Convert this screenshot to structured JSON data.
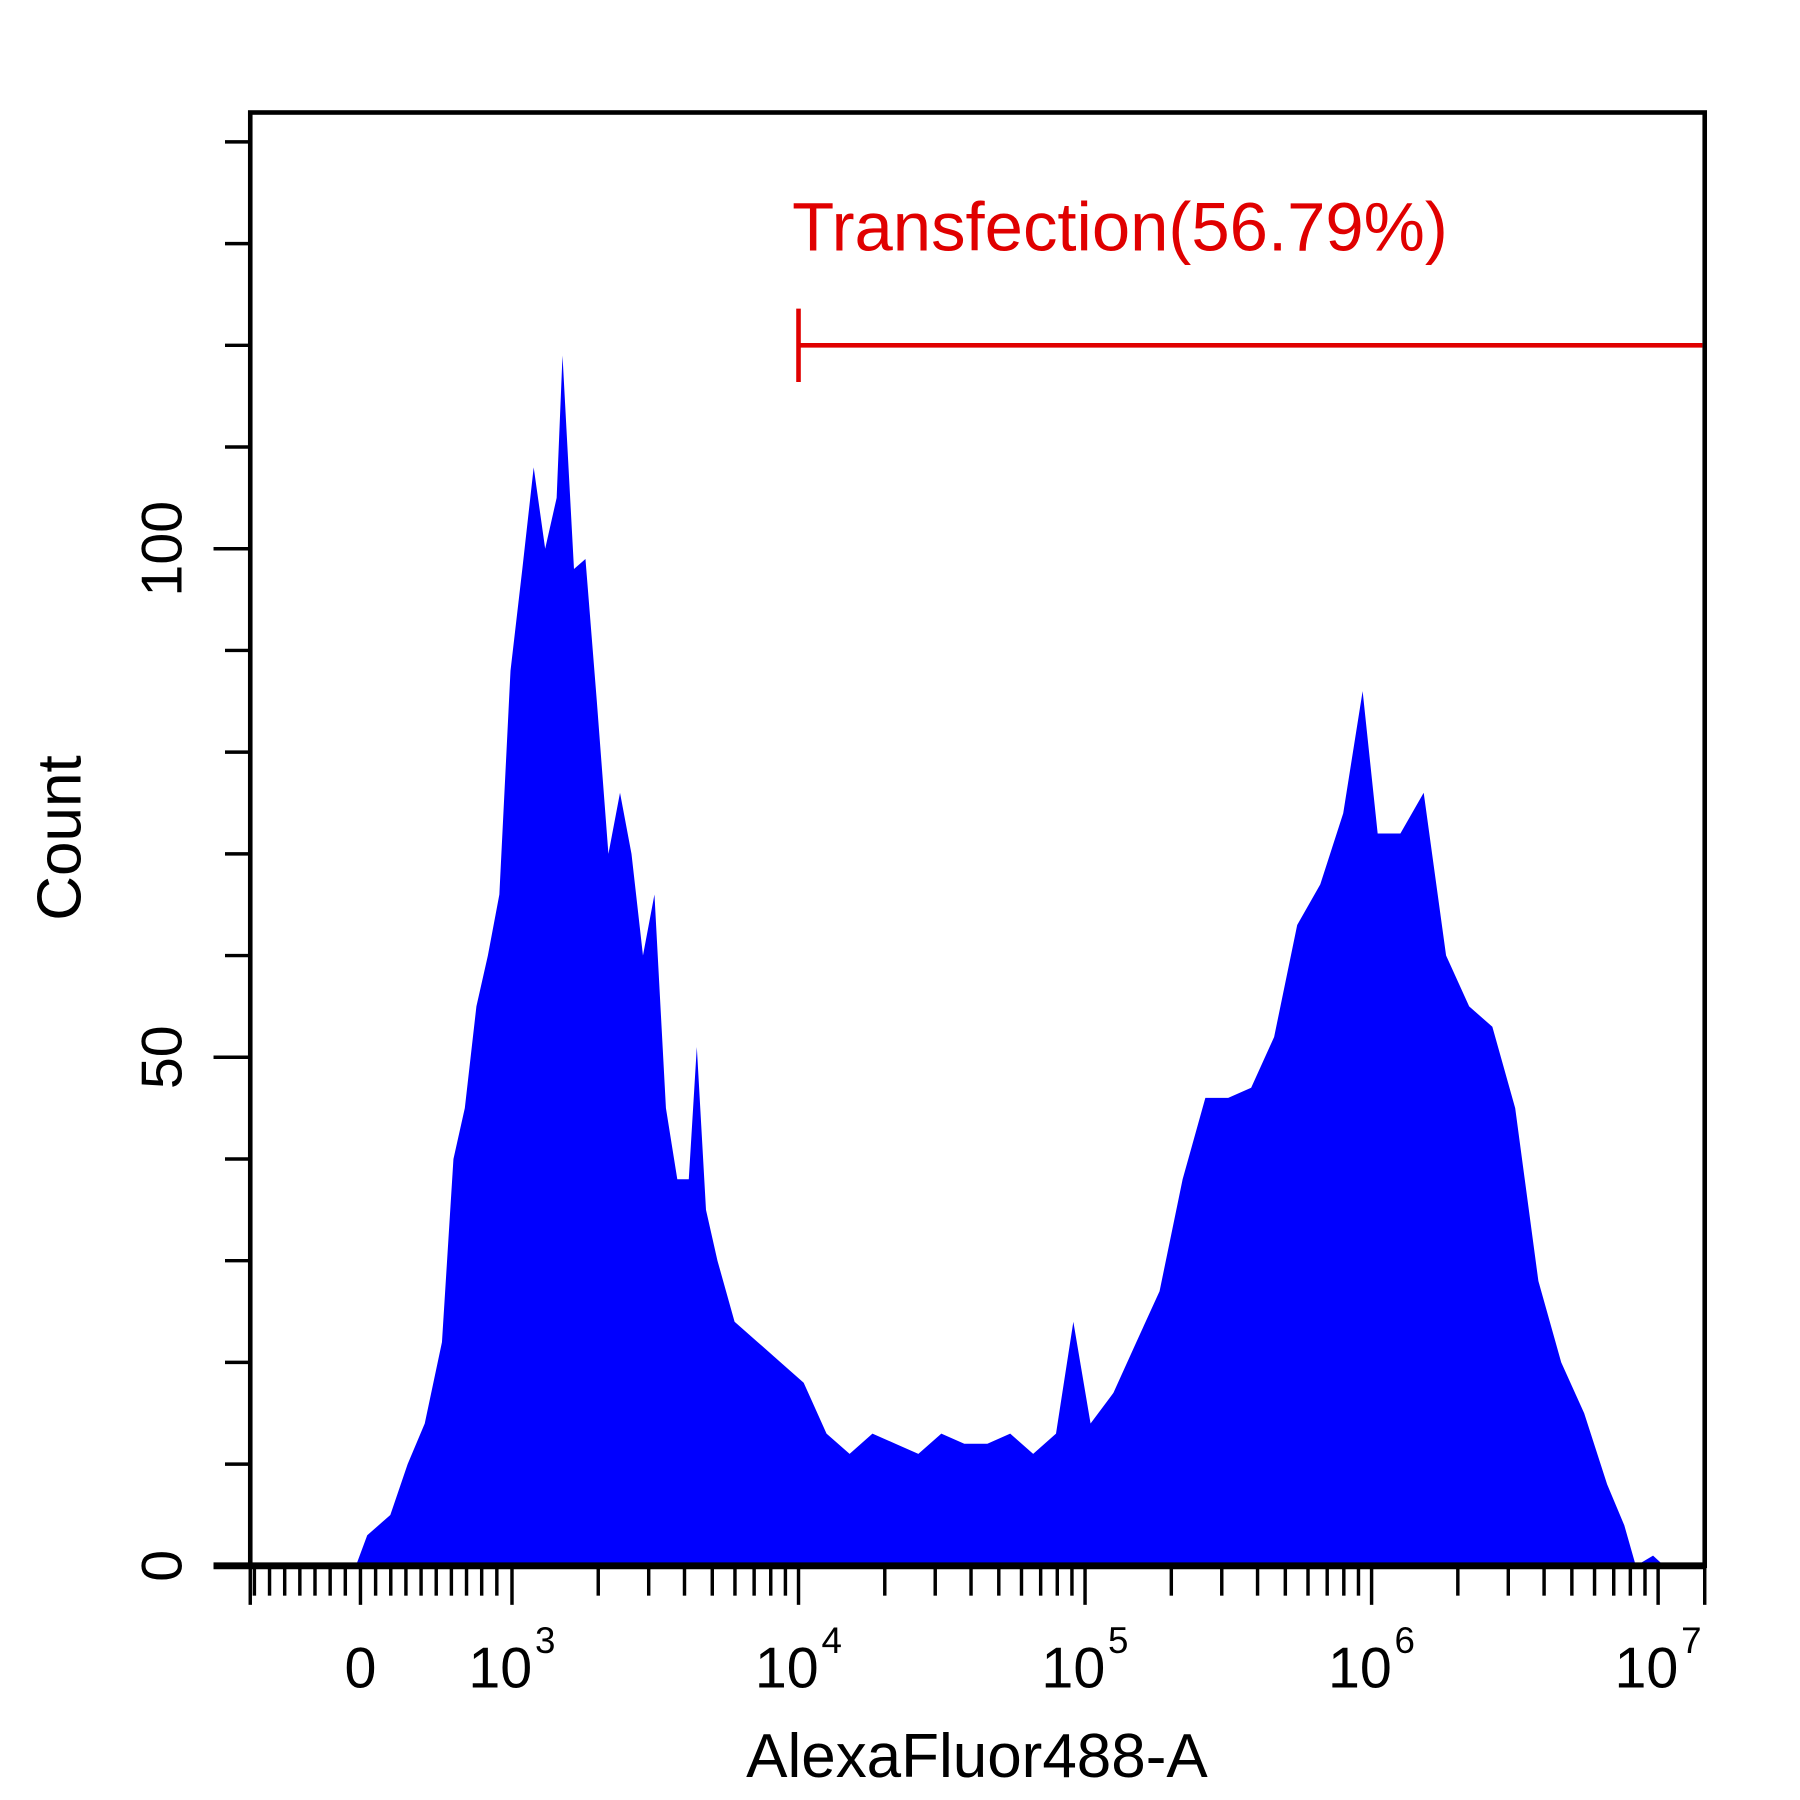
{
  "chart_data": {
    "type": "area",
    "title": "",
    "xlabel": "AlexaFluor488-A",
    "ylabel": "Count",
    "x_scale": "biexponential",
    "xlim": [
      -730,
      16000000
    ],
    "ylim": [
      0,
      150
    ],
    "x_tick_labels": [
      {
        "value": 0,
        "base": "0",
        "exp": ""
      },
      {
        "value": 1000,
        "base": "10",
        "exp": "3"
      },
      {
        "value": 10000,
        "base": "10",
        "exp": "4"
      },
      {
        "value": 100000,
        "base": "10",
        "exp": "5"
      },
      {
        "value": 1000000,
        "base": "10",
        "exp": "6"
      },
      {
        "value": 10000000,
        "base": "10",
        "exp": "7"
      }
    ],
    "y_tick_labels": [
      {
        "value": 0,
        "label": "0"
      },
      {
        "value": 50,
        "label": "50"
      },
      {
        "value": 100,
        "label": "100"
      }
    ],
    "y_minor_ticks": [
      10,
      20,
      30,
      40,
      60,
      70,
      80,
      90,
      110,
      120,
      130,
      140
    ],
    "fill_color": "#0000ff",
    "grid": false,
    "series": [
      {
        "x": [
          -30,
          45,
          197,
          311,
          424,
          538,
          614,
          689,
          765,
          841,
          917,
          990,
          1087,
          1191,
          1306,
          1432,
          1500,
          1645,
          1804,
          1978,
          2171,
          2382,
          2612,
          2864,
          3141,
          3444,
          3776,
          4141,
          4417,
          4754,
          5213,
          5984,
          7198,
          8661,
          10420,
          12530,
          15070,
          18120,
          21780,
          26190,
          31500,
          37900,
          45600,
          54800,
          65900,
          79200,
          91000,
          104500,
          125600,
          151000,
          182000,
          219000,
          263000,
          316000,
          380000,
          457000,
          550000,
          662000,
          796000,
          931000,
          1050000,
          1260000,
          1520000,
          1820000,
          2190000,
          2640000,
          3170000,
          3820000,
          4590000,
          5520000,
          6640000,
          7620000,
          8360000,
          9600000,
          10500000
        ],
        "y": [
          0,
          3,
          5,
          10,
          14,
          22,
          40,
          45,
          55,
          60,
          66,
          88,
          98,
          108,
          100,
          105,
          119,
          98,
          99,
          85,
          70,
          76,
          70,
          60,
          66,
          45,
          38,
          38,
          51,
          35,
          30,
          24,
          22,
          20,
          18,
          13,
          11,
          13,
          12,
          11,
          13,
          12,
          12,
          13,
          11,
          13,
          24,
          14,
          17,
          22,
          27,
          38,
          46,
          46,
          47,
          52,
          63,
          67,
          74,
          86,
          72,
          72,
          76,
          60,
          55,
          53,
          45,
          28,
          20,
          15,
          8,
          4,
          0,
          1,
          0
        ]
      }
    ],
    "gate": {
      "label": "Transfection(56.79%)",
      "x_start": 10000,
      "x_end": 16000000,
      "y_level": 120,
      "color": "#e00000"
    }
  }
}
